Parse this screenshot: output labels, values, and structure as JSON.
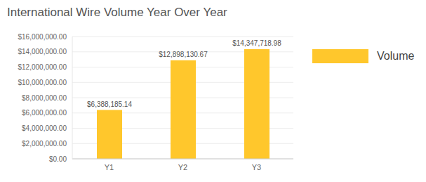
{
  "chart_data": {
    "type": "bar",
    "title": "International Wire Volume Year Over Year",
    "categories": [
      "Y1",
      "Y2",
      "Y3"
    ],
    "series": [
      {
        "name": "Volume",
        "color": "#ffc72c",
        "values": [
          6388185.14,
          12898130.67,
          14347718.98
        ],
        "value_labels": [
          "$6,388,185.14",
          "$12,898,130.67",
          "$14,347,718.98"
        ]
      }
    ],
    "ylim": [
      0,
      16000000
    ],
    "yticks": [
      {
        "value": 0,
        "label": "$0.00"
      },
      {
        "value": 2000000,
        "label": "$2,000,000.00"
      },
      {
        "value": 4000000,
        "label": "$4,000,000.00"
      },
      {
        "value": 6000000,
        "label": "$6,000,000.00"
      },
      {
        "value": 8000000,
        "label": "$8,000,000.00"
      },
      {
        "value": 10000000,
        "label": "$10,000,000.00"
      },
      {
        "value": 12000000,
        "label": "$12,000,000.00"
      },
      {
        "value": 14000000,
        "label": "$14,000,000.00"
      },
      {
        "value": 16000000,
        "label": "$16,000,000.00"
      }
    ],
    "grid": true,
    "legend": "right",
    "data_labels": true
  }
}
